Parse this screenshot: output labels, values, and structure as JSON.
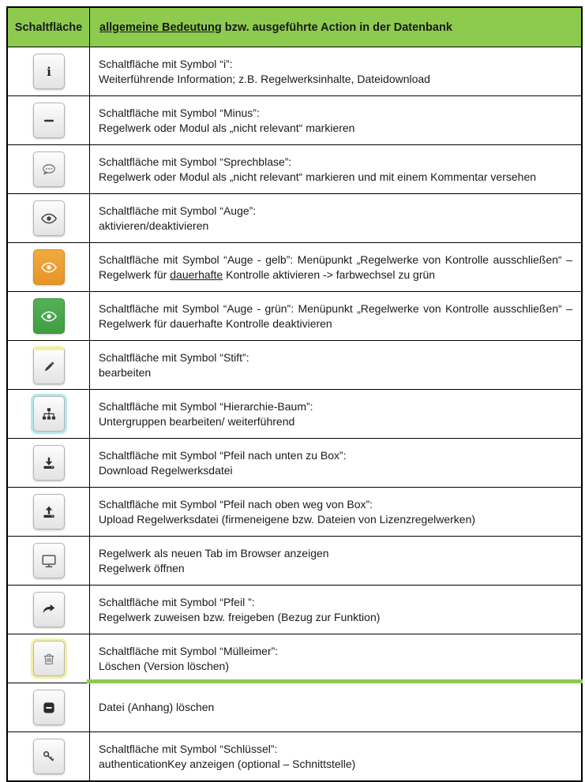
{
  "colors": {
    "header_green": "#8dcb4f",
    "orange_button": "#e89426",
    "orange_button_light": "#f1aa40",
    "green_button": "#3f9d41",
    "green_button_light": "#55b156",
    "pale_yellow_highlight": "#f2efa3",
    "pale_cyan_highlight": "#b3e7ee",
    "table_border": "#000000"
  },
  "table": {
    "col1_header": "Schaltfläche",
    "col2_header_segments": [
      {
        "t": "allgemeine Bedeutung",
        "u": true
      },
      {
        "t": " bzw. ausgeführte Action in der Datenbank"
      }
    ],
    "rows": [
      {
        "name": "info-button",
        "icon": "info-icon",
        "style": "default",
        "text": [
          [
            {
              "t": "Schaltfläche mit Symbol “i”:"
            }
          ],
          [
            {
              "t": "Weiterführende Information; z.B. Regelwerksinhalte, Dateidownload"
            }
          ]
        ]
      },
      {
        "name": "minus-button",
        "icon": "minus-icon",
        "style": "default",
        "text": [
          [
            {
              "t": "Schaltfläche mit Symbol “Minus”:"
            }
          ],
          [
            {
              "t": "Regelwerk oder Modul als „nicht relevant“ markieren"
            }
          ]
        ]
      },
      {
        "name": "comment-button",
        "icon": "speech-bubble-icon",
        "style": "default",
        "text": [
          [
            {
              "t": "Schaltfläche mit Symbol “Sprechblase”:"
            }
          ],
          [
            {
              "t": "Regelwerk oder Modul als „nicht relevant“ markieren und mit einem Kommentar versehen"
            }
          ]
        ]
      },
      {
        "name": "eye-button",
        "icon": "eye-icon",
        "style": "default",
        "text": [
          [
            {
              "t": "Schaltfläche mit Symbol “Auge”:"
            }
          ],
          [
            {
              "t": "aktivieren/deaktivieren"
            }
          ]
        ]
      },
      {
        "name": "eye-yellow-button",
        "icon": "eye-icon",
        "style": "orange",
        "justify": true,
        "text": [
          [
            {
              "t": "Schaltfläche mit Symbol “Auge - gelb”: Menüpunkt „Regelwerke von Kontrolle ausschließen“ – Regelwerk für "
            },
            {
              "t": "dauerhafte",
              "u": true
            },
            {
              "t": " Kontrolle aktivieren -> farbwechsel zu grün"
            }
          ]
        ]
      },
      {
        "name": "eye-green-button",
        "icon": "eye-icon",
        "style": "green",
        "justify": true,
        "text": [
          [
            {
              "t": "Schaltfläche mit Symbol “Auge - grün”: Menüpunkt „Regelwerke von Kontrolle ausschließen“ – Regelwerk für dauerhafte Kontrolle deaktivieren"
            }
          ]
        ]
      },
      {
        "name": "edit-button",
        "icon": "pencil-icon",
        "style": "yellow-top",
        "text": [
          [
            {
              "t": "Schaltfläche mit Symbol “Stift”:"
            }
          ],
          [
            {
              "t": "bearbeiten"
            }
          ]
        ]
      },
      {
        "name": "hierarchy-button",
        "icon": "hierarchy-tree-icon",
        "style": "cyan-border",
        "text": [
          [
            {
              "t": "Schaltfläche mit Symbol “Hierarchie-Baum”:"
            }
          ],
          [
            {
              "t": "Untergruppen bearbeiten/ weiterführend"
            }
          ]
        ]
      },
      {
        "name": "download-button",
        "icon": "download-to-box-icon",
        "style": "default",
        "text": [
          [
            {
              "t": "Schaltfläche mit Symbol “Pfeil nach unten zu Box”:"
            }
          ],
          [
            {
              "t": "Download Regelwerksdatei"
            }
          ]
        ]
      },
      {
        "name": "upload-button",
        "icon": "upload-from-box-icon",
        "style": "default",
        "text": [
          [
            {
              "t": "Schaltfläche mit Symbol “Pfeil nach oben weg von Box”:"
            }
          ],
          [
            {
              "t": "Upload Regelwerksdatei (firmeneigene bzw. Dateien von Lizenzregelwerken)"
            }
          ]
        ]
      },
      {
        "name": "open-in-browser-button",
        "icon": "monitor-icon",
        "style": "default",
        "text": [
          [
            {
              "t": "Regelwerk als neuen Tab im Browser anzeigen"
            }
          ],
          [
            {
              "t": "Regelwerk öffnen"
            }
          ]
        ]
      },
      {
        "name": "assign-button",
        "icon": "forward-arrow-icon",
        "style": "default",
        "text": [
          [
            {
              "t": "Schaltfläche mit Symbol “Pfeil ”:"
            }
          ],
          [
            {
              "t": "Regelwerk zuweisen bzw. freigeben (Bezug zur Funktion)"
            }
          ]
        ]
      },
      {
        "name": "delete-version-button",
        "icon": "trash-icon",
        "style": "yellow-border",
        "text": [
          [
            {
              "t": "Schaltfläche mit Symbol “Mülleimer”:"
            }
          ],
          [
            {
              "t": "Löschen (Version löschen)"
            }
          ]
        ]
      },
      {
        "name": "delete-attachment-button",
        "icon": "minus-filled-icon",
        "style": "default",
        "text": [
          [
            {
              "t": "Datei (Anhang) löschen"
            }
          ]
        ]
      },
      {
        "name": "authentication-key-button",
        "icon": "key-icon",
        "style": "default",
        "text": [
          [
            {
              "t": "Schaltfläche mit Symbol “Schlüssel”:"
            }
          ],
          [
            {
              "t": "authenticationKey anzeigen (optional – Schnittstelle)"
            }
          ]
        ]
      }
    ]
  }
}
